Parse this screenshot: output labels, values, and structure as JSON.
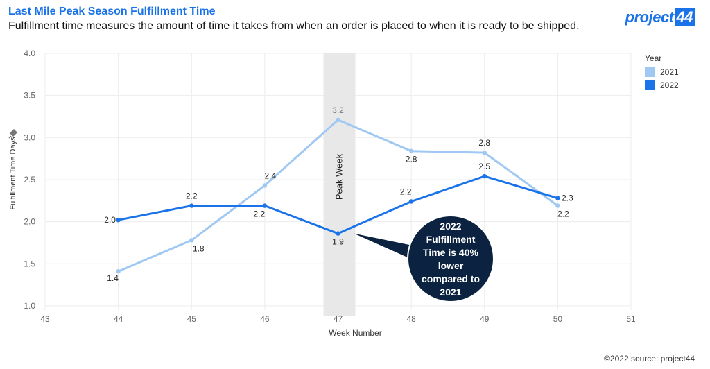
{
  "header": {
    "title": "Last Mile Peak Season Fulfillment Time",
    "subtitle": "Fulfillment time measures the amount of time it takes from when an order is placed to when it is ready to be shipped."
  },
  "logo": {
    "text": "project",
    "number": "44"
  },
  "source": "©2022 source: project44",
  "legend": {
    "title": "Year",
    "items": [
      {
        "label": "2021",
        "color": "#9fc8f2"
      },
      {
        "label": "2022",
        "color": "#1a73e8"
      }
    ]
  },
  "chart_data": {
    "type": "line",
    "title": "Last Mile Peak Season Fulfillment Time",
    "xlabel": "Week Number",
    "ylabel": "Fulfillment Time Days",
    "x_ticks": [
      "43",
      "44",
      "45",
      "46",
      "47",
      "48",
      "49",
      "50",
      "51"
    ],
    "y_ticks": [
      "1.0",
      "1.5",
      "2.0",
      "2.5",
      "3.0",
      "3.5",
      "4.0"
    ],
    "xlim": [
      43,
      51
    ],
    "ylim": [
      0.95,
      4.0
    ],
    "grid": true,
    "legend_position": "top-right",
    "x": [
      44,
      45,
      46,
      47,
      48,
      49,
      50
    ],
    "series": [
      {
        "name": "2021",
        "color": "#9fc8f2",
        "values": [
          1.41,
          1.78,
          2.43,
          3.21,
          2.84,
          2.82,
          2.19
        ],
        "labels": [
          "1.4",
          "1.8",
          "2.4",
          "3.2",
          "2.8",
          "2.8",
          "2.2"
        ]
      },
      {
        "name": "2022",
        "color": "#1a73e8",
        "values": [
          2.02,
          2.19,
          2.19,
          1.86,
          2.24,
          2.54,
          2.28
        ],
        "labels": [
          "2.0",
          "2.2",
          "2.2",
          "1.9",
          "2.2",
          "2.5",
          "2.3"
        ]
      }
    ],
    "highlight": {
      "x": 47,
      "label": "Peak Week"
    },
    "annotation": {
      "lines": [
        "2022",
        "Fulfillment",
        "Time is 40%",
        "lower",
        "compared to",
        "2021"
      ],
      "bg_color": "#0b2340",
      "points_to": {
        "x": 47,
        "y": 1.86
      }
    }
  }
}
